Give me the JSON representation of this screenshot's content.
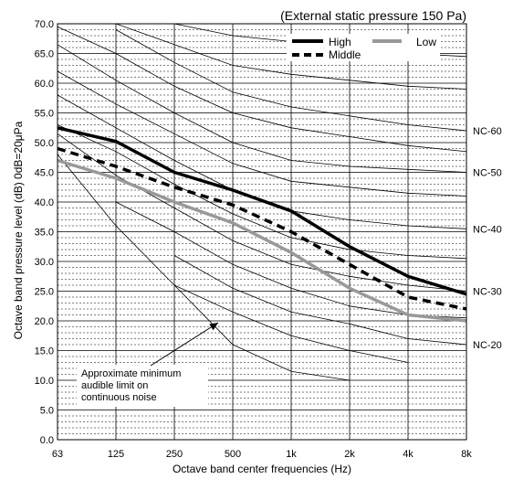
{
  "chart_data": {
    "type": "line",
    "title": "(External static pressure 150 Pa)",
    "xlabel": "Octave band center frequencies (Hz)",
    "ylabel": "Octave band pressure level (dB) 0dB=20μPa",
    "categories": [
      "63",
      "125",
      "250",
      "500",
      "1k",
      "2k",
      "4k",
      "8k"
    ],
    "ylim": [
      0,
      70
    ],
    "yticks": [
      "0.0",
      "5.0",
      "10.0",
      "15.0",
      "20.0",
      "25.0",
      "30.0",
      "35.0",
      "40.0",
      "45.0",
      "50.0",
      "55.0",
      "60.0",
      "65.0",
      "70.0"
    ],
    "grid": "major and minor horizontal, vertical at each band",
    "legend_position": "top-right",
    "series": [
      {
        "name": "High",
        "color": "#000000",
        "dashed": false,
        "values": [
          52.5,
          50.2,
          45.0,
          42.0,
          38.5,
          32.5,
          27.5,
          24.5
        ]
      },
      {
        "name": "Middle",
        "color": "#000000",
        "dashed": true,
        "values": [
          49.0,
          46.0,
          42.5,
          39.5,
          35.0,
          29.5,
          24.0,
          22.0
        ]
      },
      {
        "name": "Low",
        "color": "#999999",
        "dashed": false,
        "values": [
          47.0,
          44.0,
          40.0,
          36.5,
          31.5,
          25.5,
          21.0,
          20.0
        ]
      }
    ],
    "nc_curves": [
      {
        "label": "",
        "values": [
          null,
          null,
          70.0,
          68.0,
          67.0,
          66.0,
          65.0,
          64.5
        ]
      },
      {
        "label": "",
        "values": [
          null,
          70.0,
          66.5,
          63.0,
          61.5,
          60.5,
          59.5,
          59.0
        ]
      },
      {
        "label": "NC-60",
        "values": [
          null,
          69.0,
          63.5,
          58.5,
          56.0,
          54.5,
          53.0,
          52.0
        ]
      },
      {
        "label": "",
        "values": [
          69.5,
          65.0,
          59.5,
          55.0,
          52.5,
          51.0,
          49.5,
          48.5
        ]
      },
      {
        "label": "NC-50",
        "values": [
          66.5,
          60.5,
          55.0,
          50.0,
          47.0,
          46.0,
          45.5,
          45.0
        ]
      },
      {
        "label": "",
        "values": [
          62.0,
          56.5,
          51.5,
          46.5,
          43.5,
          42.5,
          41.5,
          41.0
        ]
      },
      {
        "label": "NC-40",
        "values": [
          58.0,
          52.5,
          47.0,
          42.0,
          38.5,
          37.0,
          36.0,
          35.5
        ]
      },
      {
        "label": "",
        "values": [
          53.0,
          48.5,
          43.0,
          38.0,
          34.0,
          32.0,
          31.0,
          30.5
        ]
      },
      {
        "label": "NC-30",
        "values": [
          51.5,
          44.5,
          39.0,
          33.5,
          29.5,
          27.5,
          26.0,
          25.0
        ]
      },
      {
        "label": "",
        "values": [
          null,
          40.0,
          35.0,
          29.5,
          25.5,
          22.5,
          21.0,
          20.5
        ]
      },
      {
        "label": "NC-20",
        "values": [
          null,
          null,
          31.0,
          25.5,
          21.5,
          19.5,
          17.0,
          16.0
        ]
      },
      {
        "label": "",
        "values": [
          null,
          null,
          26.0,
          21.5,
          17.5,
          15.0,
          13.0,
          null
        ]
      }
    ],
    "audible_limit_curve": {
      "values": [
        48.0,
        36.0,
        26.0,
        16.0,
        11.5,
        10.0,
        null,
        null
      ]
    },
    "annotation": {
      "lines": [
        "Approximate minimum",
        "audible limit on",
        "continuous noise"
      ],
      "arrow_target": {
        "x": "500",
        "y": 20.0
      }
    }
  }
}
